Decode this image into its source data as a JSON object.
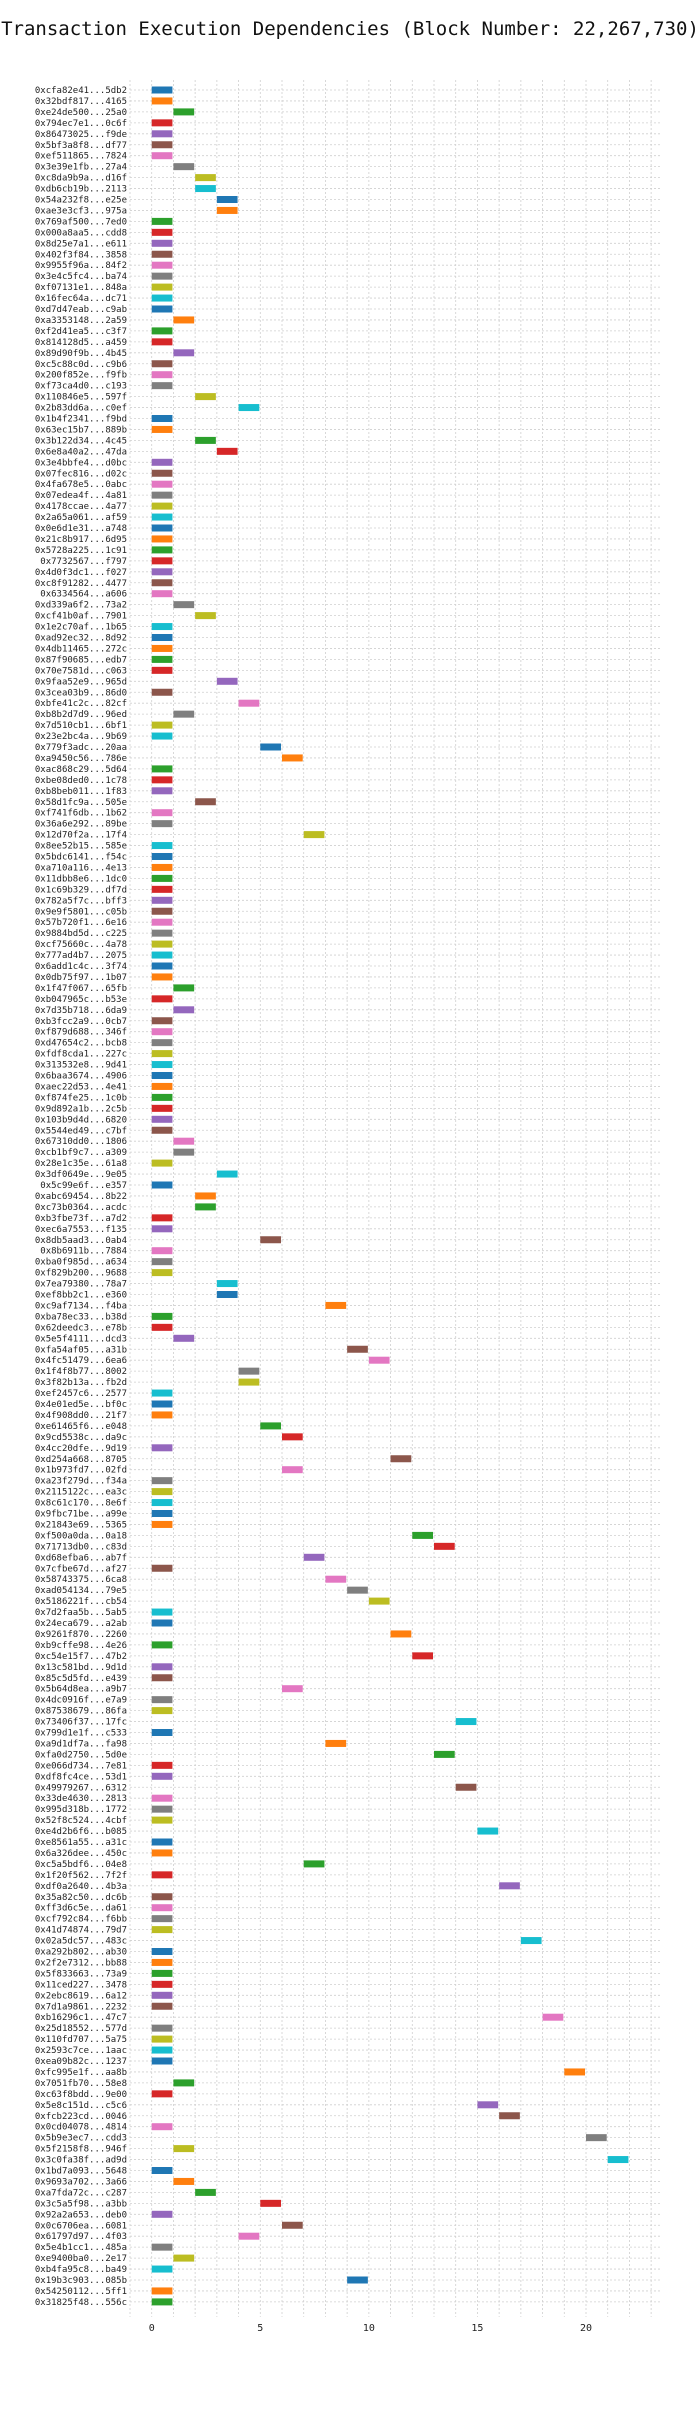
{
  "chart_data": {
    "type": "bar",
    "orientation": "horizontal",
    "title": "Transaction Execution Dependencies (Block Number: 22,267,730)",
    "xlabel": "",
    "ylabel": "",
    "xlim": [
      -1,
      23.5
    ],
    "x_ticks": [
      0,
      5,
      10,
      15,
      20
    ],
    "grid": true,
    "legend": "none",
    "colors": [
      "#1f77b4",
      "#ff7f0e",
      "#2ca02c",
      "#d62728",
      "#9467bd",
      "#8c564b",
      "#e377c2",
      "#7f7f7f",
      "#bcbd22",
      "#17becf"
    ],
    "bar_length": 1,
    "transactions": [
      [
        "0xcfa82e41...5db2",
        0
      ],
      [
        "0x32bdf817...4165",
        0
      ],
      [
        "0xe24de500...25a0",
        1
      ],
      [
        "0x794ec7e1...0c6f",
        0
      ],
      [
        "0x86473025...f9de",
        0
      ],
      [
        "0x5bf3a8f8...df77",
        0
      ],
      [
        "0xef511865...7824",
        0
      ],
      [
        "0x3e39e1fb...27a4",
        1
      ],
      [
        "0xc8da9b9a...d16f",
        2
      ],
      [
        "0xdb6cb19b...2113",
        2
      ],
      [
        "0x54a232f8...e25e",
        3
      ],
      [
        "0xae3e3cf3...975a",
        3
      ],
      [
        "0x769af500...7ed0",
        0
      ],
      [
        "0x000a8aa5...cdd8",
        0
      ],
      [
        "0x8d25e7a1...e611",
        0
      ],
      [
        "0x402f3f84...3858",
        0
      ],
      [
        "0x9955f96a...84f2",
        0
      ],
      [
        "0x3e4c5fc4...ba74",
        0
      ],
      [
        "0xf07131e1...848a",
        0
      ],
      [
        "0x16fec64a...dc71",
        0
      ],
      [
        "0xd7d47eab...c9ab",
        0
      ],
      [
        "0xa3353148...2a59",
        1
      ],
      [
        "0xf2d41ea5...c3f7",
        0
      ],
      [
        "0x814128d5...a459",
        0
      ],
      [
        "0x89d90f9b...4b45",
        1
      ],
      [
        "0xc5c88c0d...c9b6",
        0
      ],
      [
        "0x200f852e...f9fb",
        0
      ],
      [
        "0xf73ca4d0...c193",
        0
      ],
      [
        "0x110846e5...597f",
        2
      ],
      [
        "0x2b83dd6a...c0ef",
        4
      ],
      [
        "0x1b4f2341...f9bd",
        0
      ],
      [
        "0x63ec15b7...889b",
        0
      ],
      [
        "0x3b122d34...4c45",
        2
      ],
      [
        "0x6e8a40a2...47da",
        3
      ],
      [
        "0x3e4bbfe4...d0bc",
        0
      ],
      [
        "0x07fec816...d02c",
        0
      ],
      [
        "0x4fa678e5...0abc",
        0
      ],
      [
        "0x07edea4f...4a81",
        0
      ],
      [
        "0x4178ccae...4a77",
        0
      ],
      [
        "0x2a65a061...af59",
        0
      ],
      [
        "0x0e6d1e31...a748",
        0
      ],
      [
        "0x21c8b917...6d95",
        0
      ],
      [
        "0x5728a225...1c91",
        0
      ],
      [
        "0x7732567...f797",
        0
      ],
      [
        "0x4d0f3dc1...f027",
        0
      ],
      [
        "0xc8f91282...4477",
        0
      ],
      [
        "0x6334564...a606",
        0
      ],
      [
        "0xd339a6f2...73a2",
        1
      ],
      [
        "0xcf41b0af...7901",
        2
      ],
      [
        "0x1e2c70af...1b65",
        0
      ],
      [
        "0xad92ec32...8d92",
        0
      ],
      [
        "0x4db11465...272c",
        0
      ],
      [
        "0x87f90685...edb7",
        0
      ],
      [
        "0x70e7581d...c063",
        0
      ],
      [
        "0x9faa52e9...965d",
        3
      ],
      [
        "0x3cea03b9...86d0",
        0
      ],
      [
        "0xbfe41c2c...82cf",
        4
      ],
      [
        "0xb8b2d7d9...96ed",
        1
      ],
      [
        "0x7d510cb1...6bf1",
        0
      ],
      [
        "0x23e2bc4a...9b69",
        0
      ],
      [
        "0x779f3adc...20aa",
        5
      ],
      [
        "0xa9450c56...786e",
        6
      ],
      [
        "0xac868c29...5d64",
        0
      ],
      [
        "0xbe08ded0...1c78",
        0
      ],
      [
        "0xb8beb011...1f83",
        0
      ],
      [
        "0x58d1fc9a...505e",
        2
      ],
      [
        "0xf741f6db...1b62",
        0
      ],
      [
        "0x36a6e292...89be",
        0
      ],
      [
        "0x12d70f2a...17f4",
        7
      ],
      [
        "0x8ee52b15...585e",
        0
      ],
      [
        "0x5bdc6141...f54c",
        0
      ],
      [
        "0xa710a116...4e13",
        0
      ],
      [
        "0x11dbb8e6...1dc0",
        0
      ],
      [
        "0x1c69b329...df7d",
        0
      ],
      [
        "0x782a5f7c...bff3",
        0
      ],
      [
        "0x9e9f5801...c05b",
        0
      ],
      [
        "0x57b720f1...6e16",
        0
      ],
      [
        "0x9884bd5d...c225",
        0
      ],
      [
        "0xcf75660c...4a78",
        0
      ],
      [
        "0x777ad4b7...2075",
        0
      ],
      [
        "0x6add1c4c...3f74",
        0
      ],
      [
        "0x0db75f97...1b07",
        0
      ],
      [
        "0x1f47f067...65fb",
        1
      ],
      [
        "0xb047965c...b53e",
        0
      ],
      [
        "0x7d35b718...6da9",
        1
      ],
      [
        "0xb3fcc2a9...0cb7",
        0
      ],
      [
        "0xf879d688...346f",
        0
      ],
      [
        "0xd47654c2...bcb8",
        0
      ],
      [
        "0xfdf8cda1...227c",
        0
      ],
      [
        "0x313532e8...9d41",
        0
      ],
      [
        "0x6baa3674...4906",
        0
      ],
      [
        "0xaec22d53...4e41",
        0
      ],
      [
        "0xf874fe25...1c0b",
        0
      ],
      [
        "0x9d892a1b...2c5b",
        0
      ],
      [
        "0x103b9d4d...6820",
        0
      ],
      [
        "0x5544ed49...c7bf",
        0
      ],
      [
        "0x67310dd0...1806",
        1
      ],
      [
        "0xcb1bf9c7...a309",
        1
      ],
      [
        "0x28e1c35e...61a8",
        0
      ],
      [
        "0x3df0649e...9e05",
        3
      ],
      [
        "0x5c99e6f...e357",
        0
      ],
      [
        "0xabc69454...8b22",
        2
      ],
      [
        "0xc73b0364...acdc",
        2
      ],
      [
        "0xb3fbe73f...a7d2",
        0
      ],
      [
        "0xec6a7553...f135",
        0
      ],
      [
        "0x8db5aad3...0ab4",
        5
      ],
      [
        "0x8b6911b...7884",
        0
      ],
      [
        "0xba0f985d...a634",
        0
      ],
      [
        "0xf829b200...9688",
        0
      ],
      [
        "0x7ea79380...78a7",
        3
      ],
      [
        "0xef8bb2c1...e360",
        3
      ],
      [
        "0xc9af7134...f4ba",
        8
      ],
      [
        "0xba78ec33...b38d",
        0
      ],
      [
        "0x62deedc3...e78b",
        0
      ],
      [
        "0x5e5f4111...dcd3",
        1
      ],
      [
        "0xfa54af05...a31b",
        9
      ],
      [
        "0x4fc51479...6ea6",
        10
      ],
      [
        "0x1f4f8b77...8002",
        4
      ],
      [
        "0x3f82b13a...fb2d",
        4
      ],
      [
        "0xef2457c6...2577",
        0
      ],
      [
        "0x4e01ed5e...bf0c",
        0
      ],
      [
        "0x4f908dd0...21f7",
        0
      ],
      [
        "0xe61465f6...e048",
        5
      ],
      [
        "0x9cd5538c...da9c",
        6
      ],
      [
        "0x4cc20dfe...9d19",
        0
      ],
      [
        "0xd254a668...8705",
        11
      ],
      [
        "0x1b973fd7...02fd",
        6
      ],
      [
        "0xa23f279d...f34a",
        0
      ],
      [
        "0x2115122c...ea3c",
        0
      ],
      [
        "0x8c61c170...8e6f",
        0
      ],
      [
        "0x9fbc71be...a99e",
        0
      ],
      [
        "0x21843e69...5365",
        0
      ],
      [
        "0xf500a0da...0a18",
        12
      ],
      [
        "0x71713db0...c83d",
        13
      ],
      [
        "0xd68efba6...ab7f",
        7
      ],
      [
        "0x7cfbe67d...af27",
        0
      ],
      [
        "0x58743375...6ca8",
        8
      ],
      [
        "0xad054134...79e5",
        9
      ],
      [
        "0x5186221f...cb54",
        10
      ],
      [
        "0x7d2faa5b...5ab5",
        0
      ],
      [
        "0x24eca679...a2ab",
        0
      ],
      [
        "0x9261f870...2260",
        11
      ],
      [
        "0xb9cffe98...4e26",
        0
      ],
      [
        "0xc54e15f7...47b2",
        12
      ],
      [
        "0x13c581bd...9d1d",
        0
      ],
      [
        "0x85c5d5fd...e439",
        0
      ],
      [
        "0x5b64d8ea...a9b7",
        6
      ],
      [
        "0x4dc0916f...e7a9",
        0
      ],
      [
        "0x87538679...86fa",
        0
      ],
      [
        "0x73406f37...17fc",
        14
      ],
      [
        "0x799d1e1f...c533",
        0
      ],
      [
        "0xa9d1df7a...fa98",
        8
      ],
      [
        "0xfa0d2750...5d0e",
        13
      ],
      [
        "0xe066d734...7e81",
        0
      ],
      [
        "0xdf8fc4ce...53d1",
        0
      ],
      [
        "0x49979267...6312",
        14
      ],
      [
        "0x33de4630...2813",
        0
      ],
      [
        "0x995d318b...1772",
        0
      ],
      [
        "0x52f8c524...4cbf",
        0
      ],
      [
        "0xe4d2b6f6...b085",
        15
      ],
      [
        "0xe8561a55...a31c",
        0
      ],
      [
        "0x6a326dee...450c",
        0
      ],
      [
        "0xc5a5bdf6...04e8",
        7
      ],
      [
        "0x1f20f562...7f2f",
        0
      ],
      [
        "0xdf0a2640...4b3a",
        16
      ],
      [
        "0x35a82c50...dc6b",
        0
      ],
      [
        "0xff3d6c5e...da61",
        0
      ],
      [
        "0xcf792c84...f6bb",
        0
      ],
      [
        "0x41d74874...79d7",
        0
      ],
      [
        "0x02a5dc57...483c",
        17
      ],
      [
        "0xa292b802...ab30",
        0
      ],
      [
        "0x2f2e7312...bb88",
        0
      ],
      [
        "0x5f833663...73a9",
        0
      ],
      [
        "0x11ced227...3478",
        0
      ],
      [
        "0x2ebc8619...6a12",
        0
      ],
      [
        "0x7d1a9861...2232",
        0
      ],
      [
        "0xb16296c1...47c7",
        18
      ],
      [
        "0x25d18552...577d",
        0
      ],
      [
        "0x110fd707...5a75",
        0
      ],
      [
        "0x2593c7ce...1aac",
        0
      ],
      [
        "0xea09b82c...1237",
        0
      ],
      [
        "0xfc995e1f...aa8b",
        19
      ],
      [
        "0x7051fb70...58e8",
        1
      ],
      [
        "0xc63f8bdd...9e00",
        0
      ],
      [
        "0x5e8c151d...c5c6",
        15
      ],
      [
        "0xfcb223cd...0046",
        16
      ],
      [
        "0x0cd04078...4814",
        0
      ],
      [
        "0x5b9e3ec7...cdd3",
        20
      ],
      [
        "0x5f2158f8...946f",
        1
      ],
      [
        "0x3c0fa38f...ad9d",
        21
      ],
      [
        "0x1bd7a093...5648",
        0
      ],
      [
        "0x9693a702...3a66",
        1
      ],
      [
        "0xa7fda72c...c287",
        2
      ],
      [
        "0x3c5a5f98...a3bb",
        5
      ],
      [
        "0x92a2a653...deb0",
        0
      ],
      [
        "0x0c6706ea...6081",
        6
      ],
      [
        "0x61797d97...4f03",
        4
      ],
      [
        "0x5e4b1cc1...485a",
        0
      ],
      [
        "0xe9400ba0...2e17",
        1
      ],
      [
        "0xb4fa95c8...ba49",
        0
      ],
      [
        "0x19b3c903...085b",
        9
      ],
      [
        "0x54250112...5ff1",
        0
      ],
      [
        "0x31825f48...556c",
        0
      ]
    ]
  }
}
